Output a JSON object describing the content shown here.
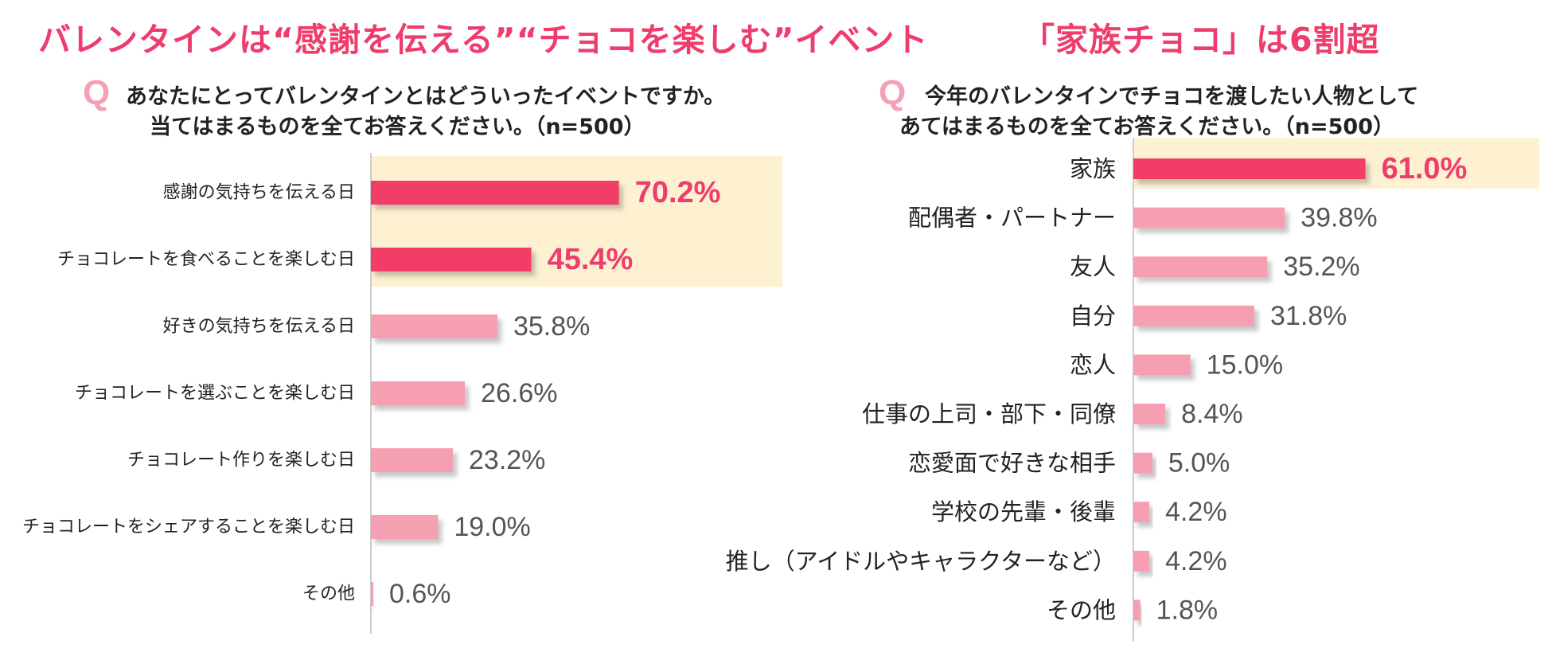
{
  "left": {
    "headline": "バレンタインは“感謝を伝える”“チョコを楽しむ”イベント",
    "q_mark": "Q",
    "question_line1": "あなたにとってバレンタインとはどういったイベントですか。",
    "question_line2": "当てはまるものを全てお答えください。（n=500）"
  },
  "right": {
    "headline": "「家族チョコ」は6割超",
    "q_mark": "Q",
    "question_line1": "今年のバレンタインでチョコを渡したい人物として",
    "question_line2": "あてはまるものを全てお答えください。（n=500）"
  },
  "colors": {
    "accent": "#ee3d6c",
    "bar_highlight": "#f23d66",
    "bar_normal": "#f79fb2",
    "highlight_bg": "#fdf1d2",
    "value_normal": "#555555",
    "axis": "#cccccc"
  },
  "chart_data": [
    {
      "type": "bar",
      "orientation": "horizontal",
      "categories": [
        "感謝の気持ちを伝える日",
        "チョコレートを食べることを楽しむ日",
        "好きの気持ちを伝える日",
        "チョコレートを選ぶことを楽しむ日",
        "チョコレート作りを楽しむ日",
        "チョコレートをシェアすることを楽しむ日",
        "その他"
      ],
      "values": [
        70.2,
        45.4,
        35.8,
        26.6,
        23.2,
        19.0,
        0.6
      ],
      "value_labels": [
        "70.2%",
        "45.4%",
        "35.8%",
        "26.6%",
        "23.2%",
        "19.0%",
        "0.6%"
      ],
      "highlighted_count": 2,
      "xlim": [
        0,
        100
      ],
      "grid": false
    },
    {
      "type": "bar",
      "orientation": "horizontal",
      "categories": [
        "家族",
        "配偶者・パートナー",
        "友人",
        "自分",
        "恋人",
        "仕事の上司・部下・同僚",
        "恋愛面で好きな相手",
        "学校の先輩・後輩",
        "推し（アイドルやキャラクターなど）",
        "その他"
      ],
      "values": [
        61.0,
        39.8,
        35.2,
        31.8,
        15.0,
        8.4,
        5.0,
        4.2,
        4.2,
        1.8
      ],
      "value_labels": [
        "61.0%",
        "39.8%",
        "35.2%",
        "31.8%",
        "15.0%",
        "8.4%",
        "5.0%",
        "4.2%",
        "4.2%",
        "1.8%"
      ],
      "highlighted_count": 1,
      "xlim": [
        0,
        100
      ],
      "grid": false
    }
  ]
}
